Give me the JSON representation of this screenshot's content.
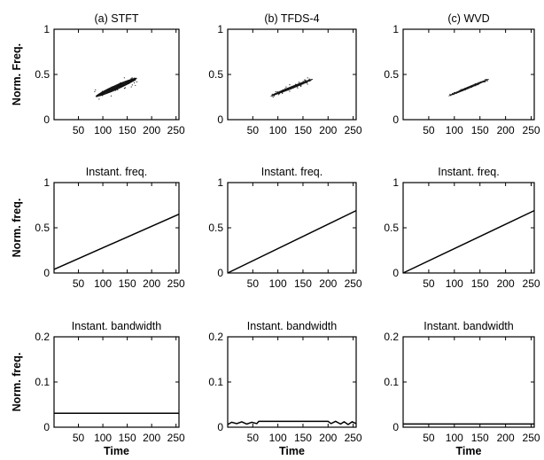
{
  "chart_data": [
    {
      "type": "heatmap",
      "title": "(a) STFT",
      "xlabel": "",
      "ylabel": "Norm. Freq.",
      "xlim": [
        0,
        256
      ],
      "ylim": [
        0,
        1
      ],
      "xticks": [
        50,
        100,
        150,
        200,
        250
      ],
      "xtick_labels": [
        "50",
        "100",
        "150",
        "200",
        "250"
      ],
      "yticks": [
        0,
        0.5,
        1
      ],
      "ytick_labels": [
        "0",
        "0.5",
        "1"
      ],
      "grid": false,
      "energy_region": {
        "x_start": 85,
        "x_end": 170,
        "y_start": 0.255,
        "y_end": 0.46,
        "spread": 0.055
      }
    },
    {
      "type": "heatmap",
      "title": "(b) TFDS-4",
      "xlabel": "",
      "ylabel": "",
      "xlim": [
        0,
        256
      ],
      "ylim": [
        0,
        1
      ],
      "xticks": [
        50,
        100,
        150,
        200,
        250
      ],
      "xtick_labels": [
        "50",
        "100",
        "150",
        "200",
        "250"
      ],
      "yticks": [
        0,
        0.5,
        1
      ],
      "ytick_labels": [
        "0",
        "0.5",
        "1"
      ],
      "grid": false,
      "energy_region": {
        "x_start": 85,
        "x_end": 170,
        "y_start": 0.26,
        "y_end": 0.45,
        "spread": 0.03
      }
    },
    {
      "type": "heatmap",
      "title": "(c) WVD",
      "xlabel": "",
      "ylabel": "",
      "xlim": [
        0,
        256
      ],
      "ylim": [
        0,
        1
      ],
      "xticks": [
        50,
        100,
        150,
        200,
        250
      ],
      "xtick_labels": [
        "50",
        "100",
        "150",
        "200",
        "250"
      ],
      "yticks": [
        0,
        0.5,
        1
      ],
      "ytick_labels": [
        "0",
        "0.5",
        "1"
      ],
      "grid": false,
      "energy_region": {
        "x_start": 88,
        "x_end": 168,
        "y_start": 0.26,
        "y_end": 0.45,
        "spread": 0.012
      }
    },
    {
      "type": "line",
      "title": "Instant. freq.",
      "xlabel": "",
      "ylabel": "Norm. freq.",
      "xlim": [
        0,
        256
      ],
      "ylim": [
        0,
        1
      ],
      "xticks": [
        50,
        100,
        150,
        200,
        250
      ],
      "xtick_labels": [
        "50",
        "100",
        "150",
        "200",
        "250"
      ],
      "yticks": [
        0,
        0.5,
        1
      ],
      "ytick_labels": [
        "0",
        "0.5",
        "1"
      ],
      "grid": false,
      "series": [
        {
          "x": [
            0,
            256
          ],
          "y": [
            0.04,
            0.65
          ]
        }
      ]
    },
    {
      "type": "line",
      "title": "Instant. freq.",
      "xlabel": "",
      "ylabel": "",
      "xlim": [
        0,
        256
      ],
      "ylim": [
        0,
        1
      ],
      "xticks": [
        50,
        100,
        150,
        200,
        250
      ],
      "xtick_labels": [
        "50",
        "100",
        "150",
        "200",
        "250"
      ],
      "yticks": [
        0,
        0.5,
        1
      ],
      "ytick_labels": [
        "0",
        "0.5",
        "1"
      ],
      "grid": false,
      "series": [
        {
          "x": [
            0,
            256
          ],
          "y": [
            0.0,
            0.69
          ]
        }
      ]
    },
    {
      "type": "line",
      "title": "Instant. freq.",
      "xlabel": "",
      "ylabel": "",
      "xlim": [
        0,
        256
      ],
      "ylim": [
        0,
        1
      ],
      "xticks": [
        50,
        100,
        150,
        200,
        250
      ],
      "xtick_labels": [
        "50",
        "100",
        "150",
        "200",
        "250"
      ],
      "yticks": [
        0,
        0.5,
        1
      ],
      "ytick_labels": [
        "0",
        "0.5",
        "1"
      ],
      "grid": false,
      "series": [
        {
          "x": [
            0,
            256
          ],
          "y": [
            0.0,
            0.69
          ]
        }
      ]
    },
    {
      "type": "line",
      "title": "Instant. bandwidth",
      "xlabel": "Time",
      "ylabel": "Norm. freq.",
      "xlim": [
        0,
        256
      ],
      "ylim": [
        0,
        0.2
      ],
      "xticks": [
        50,
        100,
        150,
        200,
        250
      ],
      "xtick_labels": [
        "50",
        "100",
        "150",
        "200",
        "250"
      ],
      "yticks": [
        0,
        0.1,
        0.2
      ],
      "ytick_labels": [
        "0",
        "0.1",
        "0.2"
      ],
      "grid": false,
      "series": [
        {
          "x": [
            0,
            256
          ],
          "y": [
            0.031,
            0.031
          ]
        }
      ]
    },
    {
      "type": "line",
      "title": "Instant. bandwidth",
      "xlabel": "Time",
      "ylabel": "",
      "xlim": [
        0,
        256
      ],
      "ylim": [
        0,
        0.2
      ],
      "xticks": [
        50,
        100,
        150,
        200,
        250
      ],
      "xtick_labels": [
        "50",
        "100",
        "150",
        "200",
        "250"
      ],
      "yticks": [
        0,
        0.1,
        0.2
      ],
      "ytick_labels": [
        "0",
        "0.1",
        "0.2"
      ],
      "grid": false,
      "series": [
        {
          "x": [
            0,
            8,
            18,
            28,
            38,
            48,
            58,
            62,
            80,
            120,
            160,
            200,
            206,
            215,
            225,
            232,
            240,
            248,
            256
          ],
          "y": [
            0.006,
            0.011,
            0.008,
            0.012,
            0.007,
            0.011,
            0.008,
            0.013,
            0.013,
            0.013,
            0.013,
            0.013,
            0.008,
            0.013,
            0.007,
            0.012,
            0.006,
            0.012,
            0.008
          ]
        }
      ]
    },
    {
      "type": "line",
      "title": "Instant. bandwidth",
      "xlabel": "Time",
      "ylabel": "",
      "xlim": [
        0,
        256
      ],
      "ylim": [
        0,
        0.2
      ],
      "xticks": [
        50,
        100,
        150,
        200,
        250
      ],
      "xtick_labels": [
        "50",
        "100",
        "150",
        "200",
        "250"
      ],
      "yticks": [
        0,
        0.1,
        0.2
      ],
      "ytick_labels": [
        "0",
        "0.1",
        "0.2"
      ],
      "grid": false,
      "series": [
        {
          "x": [
            0,
            256
          ],
          "y": [
            0.007,
            0.007
          ]
        }
      ]
    }
  ]
}
